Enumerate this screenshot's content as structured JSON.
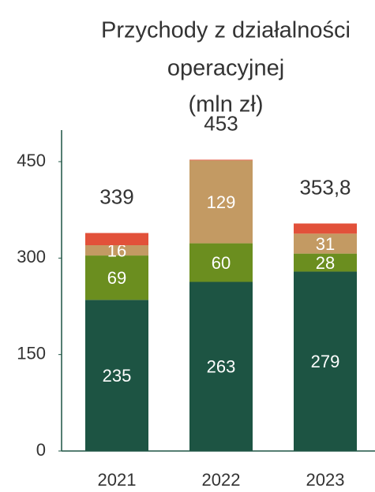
{
  "chart_data": {
    "type": "stacked_bar",
    "title": [
      "Przychody z działalności",
      "operacyjnej",
      "(mln zł)"
    ],
    "categories": [
      "2021",
      "2022",
      "2023"
    ],
    "series": [
      {
        "color": "#1d5443",
        "values": [
          235,
          263,
          279
        ]
      },
      {
        "color": "#6b8e1f",
        "values": [
          69,
          60,
          28
        ]
      },
      {
        "color": "#c39a63",
        "values": [
          16,
          129,
          31
        ]
      },
      {
        "color": "#e2513a",
        "values": [
          19,
          1,
          15.8
        ]
      }
    ],
    "data_label_series": [
      0,
      1,
      2
    ],
    "totals": [
      339,
      453,
      353.8
    ],
    "totals_value_labels": [
      "339",
      "453",
      "353,8"
    ],
    "ylim": [
      0,
      450
    ],
    "yticks": [
      0,
      150,
      300,
      450
    ]
  }
}
